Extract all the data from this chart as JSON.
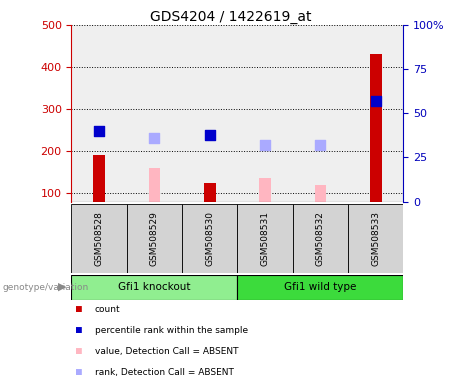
{
  "title": "GDS4204 / 1422619_at",
  "samples": [
    "GSM508528",
    "GSM508529",
    "GSM508530",
    "GSM508531",
    "GSM508532",
    "GSM508533"
  ],
  "groups": [
    {
      "name": "Gfi1 knockout",
      "color": "#90EE90",
      "indices": [
        0,
        1,
        2
      ]
    },
    {
      "name": "Gfi1 wild type",
      "color": "#3CDB3C",
      "indices": [
        3,
        4,
        5
      ]
    }
  ],
  "count_values": [
    190,
    null,
    125,
    null,
    null,
    430
  ],
  "rank_values": [
    248,
    null,
    238,
    null,
    null,
    320
  ],
  "absent_value_values": [
    null,
    160,
    null,
    135,
    120,
    null
  ],
  "absent_rank_values": [
    null,
    232,
    null,
    214,
    214,
    null
  ],
  "ylim_left": [
    80,
    500
  ],
  "ylim_right": [
    0,
    100
  ],
  "left_ticks": [
    100,
    200,
    300,
    400,
    500
  ],
  "right_ticks": [
    0,
    25,
    50,
    75,
    100
  ],
  "left_color": "#CC0000",
  "right_color": "#0000BB",
  "count_color": "#CC0000",
  "rank_color": "#0000CC",
  "absent_value_color": "#FFB6C1",
  "absent_rank_color": "#AAAAFF",
  "bar_width": 0.28,
  "dot_size": 55,
  "col_bg_color": "#D3D3D3",
  "bg_color": "#FFFFFF",
  "genotype_label_color": "#888888",
  "legend_items": [
    {
      "color": "#CC0000",
      "label": "count"
    },
    {
      "color": "#0000CC",
      "label": "percentile rank within the sample"
    },
    {
      "color": "#FFB6C1",
      "label": "value, Detection Call = ABSENT"
    },
    {
      "color": "#AAAAFF",
      "label": "rank, Detection Call = ABSENT"
    }
  ]
}
